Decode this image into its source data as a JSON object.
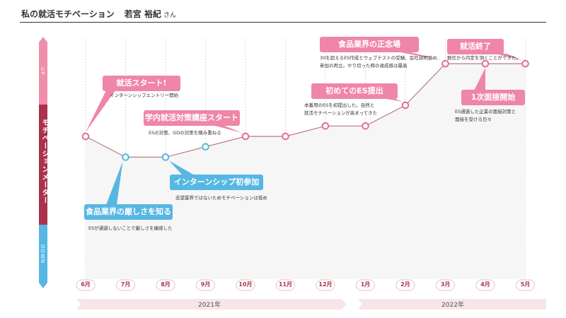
{
  "page": {
    "title": "私の就活モチベーション",
    "person_name": "若宮 裕紀",
    "person_suffix": "さん"
  },
  "gauge": {
    "up_label": "UP",
    "main_label": "モチベーションメーター",
    "down_label": "DOWN",
    "colors": {
      "up": "#f08fab",
      "middle": "#a8334a",
      "down": "#56b7e3"
    }
  },
  "years": [
    {
      "label": "2021年"
    },
    {
      "label": "2022年"
    }
  ],
  "chart_data": {
    "type": "line",
    "categories": [
      "6月",
      "7月",
      "8月",
      "9月",
      "10月",
      "11月",
      "12月",
      "1月",
      "2月",
      "3月",
      "4月",
      "5月"
    ],
    "series": [
      {
        "values": [
          0,
          -2,
          -2,
          -1,
          0,
          0,
          1,
          1,
          3,
          7,
          7,
          7
        ]
      }
    ],
    "ylim": [
      -8,
      8
    ],
    "grid": true,
    "point_colors": {
      "low": "#56b7e3",
      "normal": "#e56d8f"
    },
    "line_color": "#b97a80",
    "annotations": [
      {
        "title": "就活スタート!",
        "description": [
          "インターンシップエントリー開始"
        ],
        "point_index": 0,
        "style": "pink"
      },
      {
        "title": "食品業界の厳しさを知る",
        "description": [
          "ESが通過しないことで厳しさを痛感した"
        ],
        "point_index": 1,
        "style": "blue"
      },
      {
        "title": "インターンシップ初参加",
        "description": [
          "志望業界ではないためモチベーションは低め"
        ],
        "point_index": 2,
        "style": "blue"
      },
      {
        "title": "学内就活対策講座スタート",
        "description": [
          "ESの対策、GDの対策を積み重ねる"
        ],
        "point_index": 4,
        "style": "pink"
      },
      {
        "title": "初めてのES提出",
        "description": [
          "本番用のESを初提出した。自然と",
          "就活モチベーションが高まってきた"
        ],
        "point_index": 8,
        "style": "pink"
      },
      {
        "title": "食品業界の正念場",
        "description": [
          "30を超えるES作成とウェブテストの受験、会社説明会の",
          "参加の両立。やり切った時の達成感は最高"
        ],
        "point_index": 9,
        "style": "pink"
      },
      {
        "title": "就活終了",
        "description": [
          "数社から内定を頂くことができた。"
        ],
        "point_index": 11,
        "style": "pink"
      },
      {
        "title": "1次面接開始",
        "description": [
          "ES通過した企業の面接対策と",
          "面接を受ける日々"
        ],
        "point_index": 10,
        "style": "pink"
      }
    ]
  }
}
